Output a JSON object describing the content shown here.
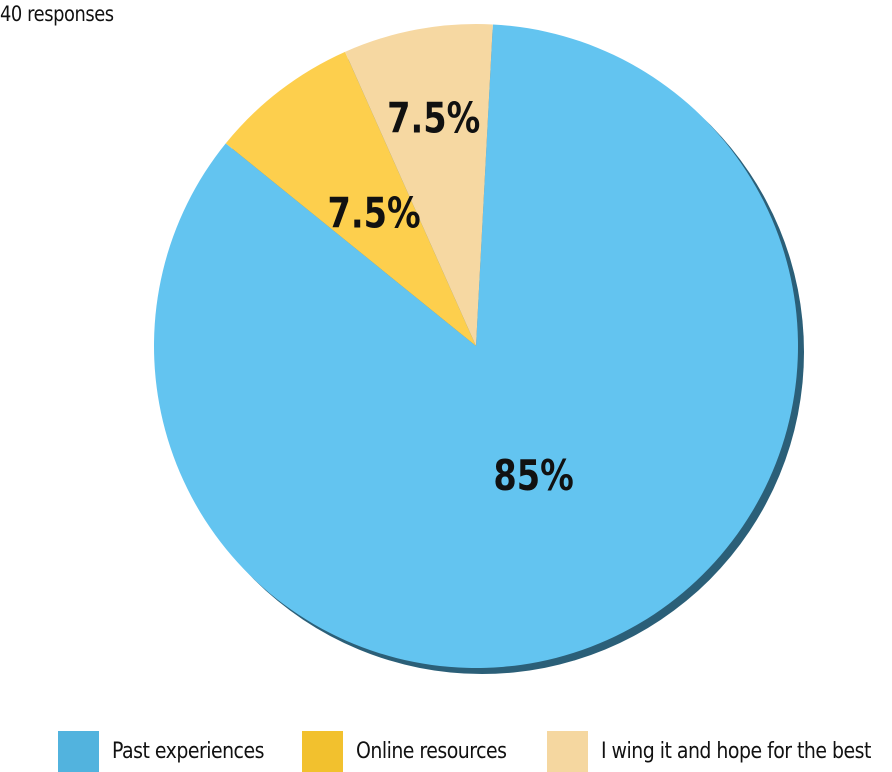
{
  "subtitle": "40 responses",
  "chart_data": {
    "type": "pie",
    "title": "",
    "categories": [
      "Past experiences",
      "Online resources",
      "I wing it and hope for the best"
    ],
    "values": [
      85,
      7.5,
      7.5
    ],
    "labels": [
      "85%",
      "7.5%",
      "7.5%"
    ],
    "colors": [
      "#63C4F0",
      "#FDCF4D",
      "#F6D8A2"
    ],
    "legend_colors": [
      "#52B3DE",
      "#F2C12E",
      "#F5D7A0"
    ],
    "legend": [
      "Past experiences",
      "Online resources",
      "I wing it and hope for the best"
    ],
    "legend_position": "bottom",
    "start_angle_deg": 3
  }
}
